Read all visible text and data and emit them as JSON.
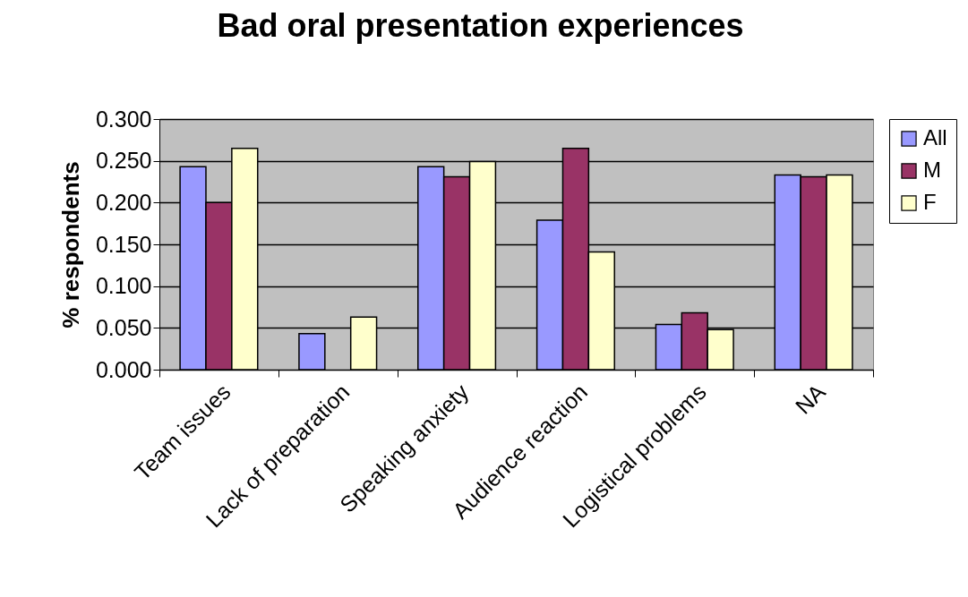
{
  "chart_data": {
    "type": "bar",
    "title": "Bad oral presentation experiences",
    "ylabel": "% respondents",
    "categories": [
      "Team issues",
      "Lack of preparation",
      "Speaking anxiety",
      "Audience reaction",
      "Logistical problems",
      "NA"
    ],
    "series": [
      {
        "name": "All",
        "color": "#9999ff",
        "values": [
          0.243,
          0.043,
          0.243,
          0.179,
          0.054,
          0.233
        ]
      },
      {
        "name": "M",
        "color": "#993366",
        "values": [
          0.2,
          null,
          0.231,
          0.265,
          0.068,
          0.231
        ]
      },
      {
        "name": "F",
        "color": "#ffffcc",
        "values": [
          0.265,
          0.063,
          0.249,
          0.141,
          0.048,
          0.233
        ]
      }
    ],
    "ylim": [
      0,
      0.3
    ],
    "yticks": [
      {
        "value": 0,
        "label": "0.000"
      },
      {
        "value": 0.05,
        "label": "0.050"
      },
      {
        "value": 0.1,
        "label": "0.100"
      },
      {
        "value": 0.15,
        "label": "0.150"
      },
      {
        "value": 0.2,
        "label": "0.200"
      },
      {
        "value": 0.25,
        "label": "0.250"
      },
      {
        "value": 0.3,
        "label": "0.300"
      }
    ],
    "grid": "y",
    "legend": "right"
  }
}
